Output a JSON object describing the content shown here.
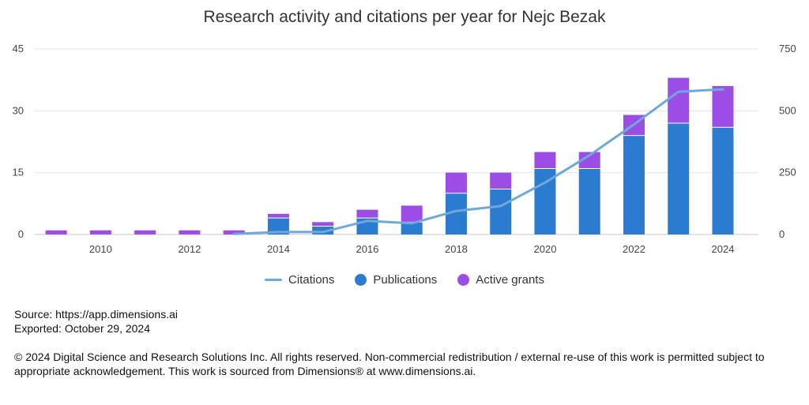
{
  "chart_data": {
    "type": "bar",
    "title": "Research activity and citations per year for Nejc Bezak",
    "years": [
      2009,
      2010,
      2011,
      2012,
      2013,
      2014,
      2015,
      2016,
      2017,
      2018,
      2019,
      2020,
      2021,
      2022,
      2023,
      2024
    ],
    "x_tick_labels": [
      "2010",
      "2012",
      "2014",
      "2016",
      "2018",
      "2020",
      "2022",
      "2024"
    ],
    "left_axis": {
      "ticks": [
        "0",
        "15",
        "30",
        "45"
      ],
      "range": [
        0,
        45
      ]
    },
    "right_axis": {
      "ticks": [
        "0",
        "250",
        "500",
        "750"
      ],
      "range": [
        0,
        750
      ]
    },
    "series": [
      {
        "name": "Publications",
        "kind": "bar",
        "axis": "left",
        "color": "#2b7bd0",
        "values": [
          0,
          0,
          0,
          0,
          0,
          4,
          2,
          4,
          3,
          10,
          11,
          16,
          16,
          24,
          27,
          26
        ]
      },
      {
        "name": "Active grants",
        "kind": "bar",
        "axis": "left",
        "color": "#9b4de6",
        "values": [
          1,
          1,
          1,
          1,
          1,
          1,
          1,
          2,
          4,
          5,
          4,
          4,
          4,
          5,
          11,
          10
        ]
      },
      {
        "name": "Citations",
        "kind": "line",
        "axis": "right",
        "color": "#6fa8dc",
        "values": [
          null,
          null,
          null,
          null,
          2,
          10,
          10,
          55,
          45,
          95,
          115,
          210,
          320,
          445,
          577,
          587
        ]
      }
    ],
    "grid": true,
    "legend_position": "bottom"
  },
  "legend": [
    {
      "label": "Citations",
      "kind": "line",
      "color": "#6fa8dc"
    },
    {
      "label": "Publications",
      "kind": "dot",
      "color": "#2b7bd0"
    },
    {
      "label": "Active grants",
      "kind": "dot",
      "color": "#9b4de6"
    }
  ],
  "footer": {
    "source": "Source: https://app.dimensions.ai",
    "exported": "Exported: October 29, 2024",
    "copyright": "© 2024 Digital Science and Research Solutions Inc. All rights reserved. Non-commercial redistribution / external re-use of this work is permitted subject to appropriate acknowledgement. This work is sourced from Dimensions® at www.dimensions.ai."
  }
}
